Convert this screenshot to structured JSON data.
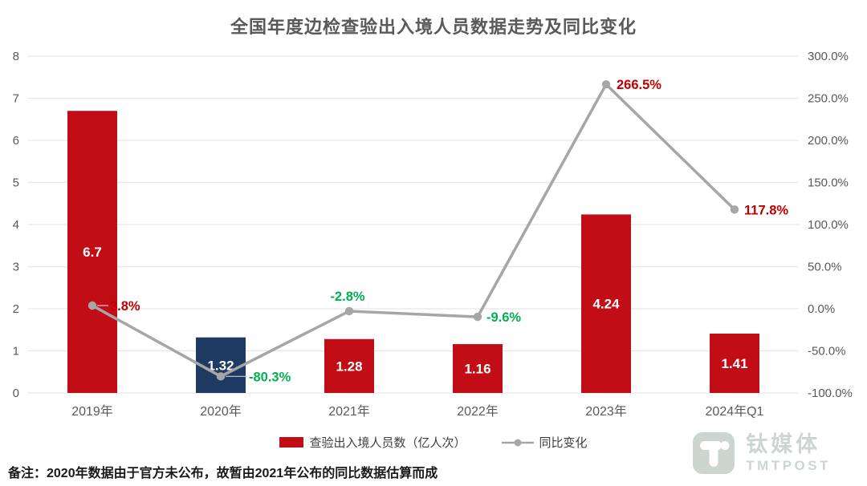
{
  "title": "全国年度边检查验出入境人员数据走势及同比变化",
  "chart_data": {
    "type": "bar",
    "subtype": "bar+line combo, dual axis",
    "categories": [
      "2019年",
      "2020年",
      "2021年",
      "2022年",
      "2023年",
      "2024年Q1"
    ],
    "series": [
      {
        "name": "查验出入境人员数（亿人次）",
        "type": "bar",
        "axis": "left",
        "values": [
          6.7,
          1.32,
          1.28,
          1.16,
          4.24,
          1.41
        ],
        "value_labels": [
          "6.7",
          "1.32",
          "1.28",
          "1.16",
          "4.24",
          "1.41"
        ],
        "bar_colors": [
          "#c00d16",
          "#1f3a63",
          "#c00d16",
          "#c00d16",
          "#c00d16",
          "#c00d16"
        ]
      },
      {
        "name": "同比变化",
        "type": "line",
        "axis": "right",
        "values": [
          3.8,
          -80.3,
          -2.8,
          -9.6,
          266.5,
          117.8
        ],
        "point_labels": [
          "3.8%",
          "-80.3%",
          "-2.8%",
          "-9.6%",
          "266.5%",
          "117.8%"
        ],
        "label_side": [
          "right",
          "right",
          "above",
          "right",
          "right",
          "right"
        ]
      }
    ],
    "left_axis": {
      "min": 0,
      "max": 8,
      "step": 1,
      "ticks": [
        "0",
        "1",
        "2",
        "3",
        "4",
        "5",
        "6",
        "7",
        "8"
      ]
    },
    "right_axis": {
      "min": -100,
      "max": 300,
      "step": 50,
      "ticks": [
        "-100.0%",
        "-50.0%",
        "0.0%",
        "50.0%",
        "100.0%",
        "150.0%",
        "200.0%",
        "250.0%",
        "300.0%"
      ]
    },
    "grid": true,
    "legend_position": "bottom",
    "colors": {
      "bar_default": "#c00d16",
      "bar_estimated_2020": "#1f3a63",
      "line": "#a6a6a6",
      "point_label_positive": "#c00000",
      "point_label_negative": "#00b050",
      "grid": "#e7e7e7",
      "axis_text": "#595959",
      "bar_value_text": "#ffffff"
    }
  },
  "legend": {
    "items": [
      {
        "label": "查验出入境人员数（亿人次）",
        "swatch": "bar"
      },
      {
        "label": "同比变化",
        "swatch": "line"
      }
    ]
  },
  "note": "备注：2020年数据由于官方未公布，故暂由2021年公布的同比数据估算而成",
  "logo": {
    "cn": "钛媒体",
    "en": "TMTPOST"
  }
}
